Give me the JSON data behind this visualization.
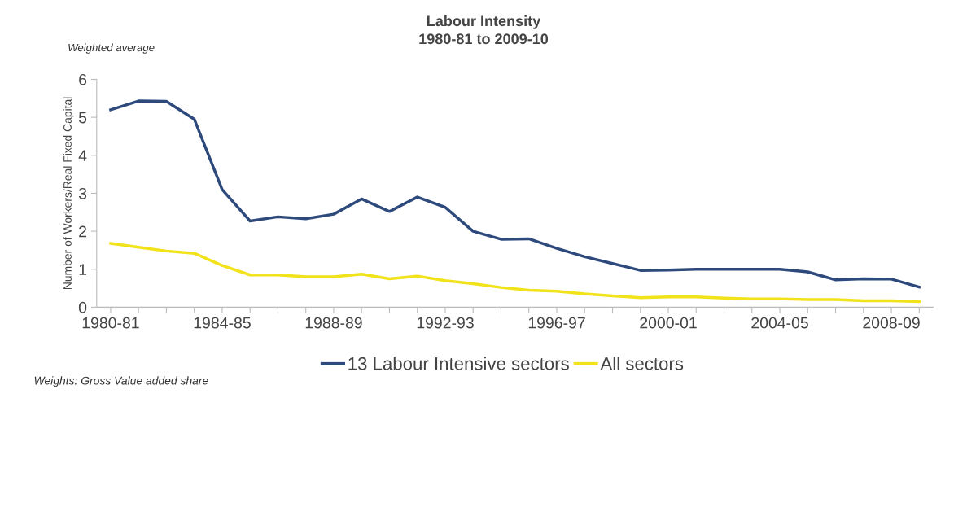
{
  "chart_data": {
    "type": "line",
    "title": "Labour Intensity",
    "subtitle": "1980-81 to 2009-10",
    "ylabel": "Number of Workers/Real Fixed Capital",
    "categories": [
      "1980-81",
      null,
      null,
      null,
      "1984-85",
      null,
      null,
      null,
      "1988-89",
      null,
      null,
      null,
      "1992-93",
      null,
      null,
      null,
      "1996-97",
      null,
      null,
      null,
      "2000-01",
      null,
      null,
      null,
      "2004-05",
      null,
      null,
      null,
      "2008-09",
      null
    ],
    "series": [
      {
        "name": "13 Labour Intensive sectors",
        "color": "#2e4a7d",
        "values": [
          5.2,
          5.43,
          5.42,
          4.95,
          3.1,
          2.27,
          2.38,
          2.33,
          2.45,
          2.85,
          2.52,
          2.9,
          2.63,
          2.0,
          1.79,
          1.8,
          1.55,
          1.33,
          1.15,
          0.97,
          0.98,
          1.0,
          1.0,
          1.0,
          1.0,
          0.93,
          0.72,
          0.75,
          0.74,
          0.53
        ]
      },
      {
        "name": "All sectors",
        "color": "#f2e21a",
        "values": [
          1.68,
          1.58,
          1.48,
          1.42,
          1.1,
          0.85,
          0.85,
          0.8,
          0.8,
          0.87,
          0.75,
          0.82,
          0.7,
          0.62,
          0.52,
          0.45,
          0.42,
          0.35,
          0.3,
          0.25,
          0.27,
          0.27,
          0.24,
          0.22,
          0.22,
          0.2,
          0.2,
          0.17,
          0.17,
          0.15
        ]
      }
    ],
    "ylim": [
      0,
      6
    ],
    "yticks": [
      0,
      1,
      2,
      3,
      4,
      5,
      6
    ],
    "grid": false,
    "legend": "bottom",
    "marker": "none",
    "line_style": "solid",
    "annotations": [
      "Weighted average",
      "Weights: Gross Value added share"
    ]
  }
}
